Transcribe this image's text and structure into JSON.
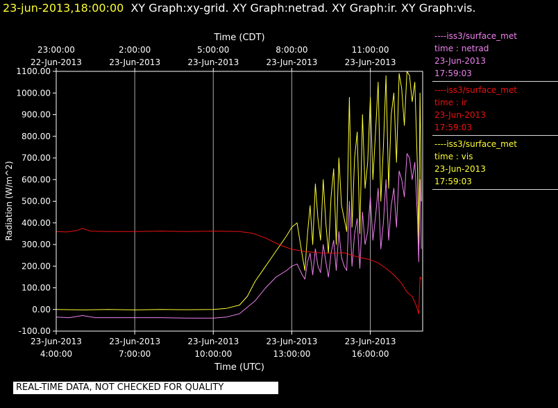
{
  "header": {
    "timestamp": "23-jun-2013,18:00:00",
    "graphs": "XY Graph:xy-grid.  XY Graph:netrad.  XY Graph:ir.  XY Graph:vis."
  },
  "legend": [
    {
      "station": "----iss3/surface_met",
      "field": "time : netrad",
      "date": "23-Jun-2013",
      "time": "17:59:03",
      "color": "#ee82ee"
    },
    {
      "station": "----iss3/surface_met",
      "field": "time : ir",
      "date": "23-Jun-2013",
      "time": "17:59:03",
      "color": "#ee1111"
    },
    {
      "station": "----iss3/surface_met",
      "field": "time : vis",
      "date": "23-Jun-2013",
      "time": "17:59:03",
      "color": "#ffff33"
    }
  ],
  "notice": "REAL-TIME DATA, NOT CHECKED FOR QUALITY",
  "chart_data": {
    "type": "line",
    "ylabel": "Radiation (W/m^2)",
    "xlabel_bottom": "Time (UTC)",
    "xlabel_top": "Time (CDT)",
    "x_unit": "hours UTC on 23-Jun-2013",
    "xlim": [
      4.0,
      18.0
    ],
    "ylim": [
      -100,
      1100
    ],
    "y_ticks": [
      "-100.00",
      "0.00",
      "100.00",
      "200.00",
      "300.00",
      "400.00",
      "500.00",
      "600.00",
      "700.00",
      "800.00",
      "900.00",
      "1000.00",
      "1100.00"
    ],
    "bottom_ticks": [
      {
        "x": 4,
        "date": "23-Jun-2013",
        "time": "4:00:00"
      },
      {
        "x": 7,
        "date": "23-Jun-2013",
        "time": "7:00:00"
      },
      {
        "x": 10,
        "date": "23-Jun-2013",
        "time": "10:00:00"
      },
      {
        "x": 13,
        "date": "23-Jun-2013",
        "time": "13:00:00"
      },
      {
        "x": 16,
        "date": "23-Jun-2013",
        "time": "16:00:00"
      }
    ],
    "top_ticks": [
      {
        "x": 4,
        "time": "23:00:00",
        "date": "22-Jun-2013"
      },
      {
        "x": 7,
        "time": "2:00:00",
        "date": "23-Jun-2013"
      },
      {
        "x": 10,
        "time": "5:00:00",
        "date": "23-Jun-2013"
      },
      {
        "x": 13,
        "time": "8:00:00",
        "date": "23-Jun-2013"
      },
      {
        "x": 16,
        "time": "11:00:00",
        "date": "23-Jun-2013"
      }
    ],
    "grid": "vertical",
    "legend_position": "right",
    "series": [
      {
        "color": "#ffff33",
        "x": [
          4.0,
          5.0,
          6.0,
          7.0,
          8.0,
          9.0,
          10.0,
          10.5,
          11.0,
          11.3,
          11.6,
          12.0,
          12.4,
          12.8,
          13.0,
          13.2,
          13.4,
          13.5,
          13.6,
          13.7,
          13.8,
          13.9,
          14.0,
          14.1,
          14.2,
          14.3,
          14.4,
          14.5,
          14.6,
          14.7,
          14.8,
          14.9,
          15.0,
          15.1,
          15.2,
          15.3,
          15.4,
          15.5,
          15.6,
          15.7,
          15.8,
          15.9,
          16.0,
          16.1,
          16.2,
          16.3,
          16.4,
          16.5,
          16.6,
          16.7,
          16.8,
          16.9,
          17.0,
          17.1,
          17.2,
          17.3,
          17.4,
          17.5,
          17.6,
          17.7,
          17.8,
          17.85,
          17.9,
          17.95
        ],
        "y": [
          0,
          -2,
          0,
          -2,
          0,
          -1,
          0,
          5,
          20,
          60,
          130,
          200,
          270,
          340,
          380,
          400,
          250,
          180,
          350,
          480,
          300,
          580,
          420,
          320,
          600,
          400,
          260,
          520,
          650,
          300,
          700,
          480,
          420,
          360,
          980,
          380,
          700,
          820,
          350,
          900,
          560,
          680,
          980,
          600,
          820,
          1050,
          500,
          750,
          1080,
          560,
          900,
          1000,
          680,
          1090,
          1020,
          850,
          1100,
          1080,
          960,
          1050,
          650,
          300,
          1000,
          500
        ]
      },
      {
        "color": "#ee82ee",
        "x": [
          4.0,
          4.5,
          5.0,
          5.5,
          6.0,
          7.0,
          8.0,
          9.0,
          10.0,
          10.5,
          11.0,
          11.3,
          11.6,
          12.0,
          12.4,
          12.8,
          13.0,
          13.2,
          13.4,
          13.5,
          13.6,
          13.7,
          13.8,
          13.9,
          14.0,
          14.1,
          14.2,
          14.3,
          14.4,
          14.5,
          14.6,
          14.7,
          14.8,
          14.9,
          15.0,
          15.1,
          15.2,
          15.3,
          15.4,
          15.5,
          15.6,
          15.7,
          15.8,
          15.9,
          16.0,
          16.1,
          16.2,
          16.3,
          16.4,
          16.5,
          16.6,
          16.7,
          16.8,
          16.9,
          17.0,
          17.1,
          17.2,
          17.3,
          17.4,
          17.5,
          17.6,
          17.7,
          17.8,
          17.85,
          17.9,
          17.95
        ],
        "y": [
          -35,
          -38,
          -28,
          -38,
          -38,
          -38,
          -38,
          -40,
          -40,
          -35,
          -20,
          10,
          40,
          100,
          150,
          180,
          200,
          210,
          160,
          140,
          220,
          260,
          160,
          280,
          200,
          170,
          300,
          220,
          150,
          260,
          320,
          180,
          360,
          240,
          200,
          180,
          500,
          200,
          350,
          420,
          190,
          450,
          300,
          360,
          520,
          320,
          430,
          560,
          280,
          400,
          600,
          320,
          480,
          560,
          380,
          640,
          600,
          520,
          720,
          700,
          600,
          680,
          420,
          220,
          600,
          280
        ]
      },
      {
        "color": "#ee1111",
        "x": [
          4.0,
          4.4,
          4.8,
          5.0,
          5.3,
          6.0,
          7.0,
          8.0,
          9.0,
          10.0,
          11.0,
          11.5,
          12.0,
          12.5,
          13.0,
          13.5,
          14.0,
          14.5,
          15.0,
          15.3,
          15.6,
          16.0,
          16.3,
          16.6,
          16.9,
          17.2,
          17.4,
          17.6,
          17.75,
          17.85,
          17.9,
          17.95
        ],
        "y": [
          360,
          358,
          365,
          375,
          362,
          360,
          360,
          362,
          360,
          362,
          360,
          352,
          330,
          300,
          278,
          268,
          262,
          260,
          262,
          250,
          240,
          230,
          215,
          190,
          160,
          120,
          80,
          60,
          20,
          -20,
          150,
          140
        ]
      }
    ]
  }
}
